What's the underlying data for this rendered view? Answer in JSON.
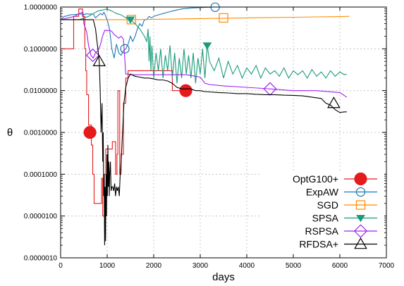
{
  "chart_data": {
    "type": "line",
    "xlabel": "days",
    "ylabel": "θ",
    "xlim": [
      0,
      7000
    ],
    "ylim": [
      1e-06,
      1
    ],
    "yscale": "log",
    "grid": "dashed",
    "legend_position": "bottom-right",
    "x_ticks": [
      "0",
      "1000",
      "2000",
      "3000",
      "4000",
      "5000",
      "6000",
      "7000"
    ],
    "y_ticks": [
      "0.0000010",
      "0.0000100",
      "0.0001000",
      "0.0010000",
      "0.0100000",
      "0.1000000",
      "1.0000000"
    ],
    "series": [
      {
        "name": "OptG100+",
        "color": "#e41a1c",
        "marker": "filled-circle",
        "marker_x": [
          630,
          2690
        ],
        "marker_y": [
          0.001,
          0.01
        ],
        "x": [
          0,
          280,
          280,
          390,
          390,
          470,
          470,
          520,
          520,
          540,
          540,
          560,
          560,
          600,
          600,
          660,
          660,
          690,
          690,
          720,
          720,
          880,
          880,
          905,
          905,
          940,
          940,
          970,
          970,
          1110,
          1110,
          1180,
          1180,
          1210,
          1210,
          1230,
          1230,
          1270,
          1270,
          1300,
          1300,
          1350,
          1350,
          1400,
          1400,
          1450,
          1450,
          2400,
          2400,
          2700
        ],
        "y": [
          0.1,
          0.1,
          0.6,
          0.6,
          0.9,
          0.9,
          0.6,
          0.6,
          0.1,
          0.1,
          0.03,
          0.03,
          0.008,
          0.008,
          0.0015,
          0.0015,
          0.0005,
          0.0005,
          0.0001,
          0.0001,
          2e-05,
          2e-05,
          8e-05,
          8e-05,
          1e-05,
          1e-05,
          0.0001,
          0.0001,
          0.0004,
          0.0004,
          0.0006,
          0.0006,
          0.0001,
          0.0001,
          0.0003,
          0.0003,
          0.01,
          0.01,
          0.0001,
          0.0001,
          0.0003,
          0.0003,
          0.005,
          0.005,
          0.02,
          0.02,
          0.03,
          0.03,
          0.01,
          0.01
        ]
      },
      {
        "name": "ExpAW",
        "color": "#1f77b4",
        "marker": "open-circle",
        "marker_x": [
          1380,
          3320
        ],
        "marker_y": [
          0.1,
          0.99
        ],
        "x": [
          0,
          80,
          100,
          200,
          300,
          400,
          450,
          500,
          550,
          600,
          700,
          750,
          850,
          900,
          930,
          970,
          1010,
          1050,
          1100,
          1150,
          1200,
          1250,
          1300,
          1350,
          1400,
          1450,
          1500,
          1550,
          1600,
          1650,
          1700,
          1750,
          1800,
          1850,
          1900,
          1950,
          2000,
          2100,
          2200,
          2300,
          2400,
          2500,
          2600,
          2700,
          2800,
          2900,
          3000,
          3100,
          3200,
          3300,
          3400,
          3500,
          3600,
          3700,
          3900,
          4200
        ],
        "y": [
          0.5,
          0.6,
          0.6,
          0.65,
          0.66,
          0.68,
          0.68,
          0.66,
          0.69,
          0.68,
          0.68,
          0.55,
          0.7,
          0.65,
          0.75,
          0.6,
          0.45,
          0.3,
          0.1,
          0.06,
          0.13,
          0.08,
          0.07,
          0.09,
          0.1,
          0.13,
          0.2,
          0.15,
          0.2,
          0.3,
          0.4,
          0.35,
          0.5,
          0.5,
          0.6,
          0.55,
          0.6,
          0.65,
          0.7,
          0.75,
          0.8,
          0.85,
          0.9,
          0.92,
          0.95,
          0.96,
          0.97,
          0.98,
          0.99,
          1.0,
          1.0,
          1.0,
          1.0,
          1.0,
          1.0,
          1.0
        ]
      },
      {
        "name": "SGD",
        "color": "#ff8c00",
        "marker": "open-square",
        "marker_x": [
          1520,
          3500
        ],
        "marker_y": [
          0.5,
          0.55
        ],
        "x": [
          0,
          500,
          1000,
          1500,
          2000,
          2500,
          3000,
          3500,
          4000,
          4500,
          5000,
          5500,
          6000,
          6200
        ],
        "y": [
          0.5,
          0.5,
          0.5,
          0.5,
          0.51,
          0.52,
          0.53,
          0.54,
          0.55,
          0.56,
          0.57,
          0.58,
          0.59,
          0.6
        ]
      },
      {
        "name": "SPSA",
        "color": "#1a9b7b",
        "marker": "filled-triangle-down",
        "marker_x": [
          1500,
          3150
        ],
        "marker_y": [
          0.5,
          0.12
        ],
        "x": [
          0,
          200,
          400,
          600,
          800,
          1000,
          1100,
          1200,
          1300,
          1400,
          1500,
          1600,
          1700,
          1800,
          1850,
          1880,
          1900,
          1920,
          1940,
          1960,
          1980,
          2000,
          2050,
          2100,
          2150,
          2200,
          2250,
          2300,
          2350,
          2400,
          2450,
          2500,
          2550,
          2600,
          2650,
          2700,
          2750,
          2800,
          2850,
          2900,
          2950,
          3000,
          3050,
          3100,
          3150,
          3200,
          3300,
          3400,
          3500,
          3600,
          3700,
          3800,
          3900,
          4000,
          4100,
          4200,
          4300,
          4400,
          4500,
          4600,
          4700,
          4800,
          4900,
          5000,
          5100,
          5200,
          5300,
          5400,
          5500,
          5600,
          5700,
          5800,
          5900,
          6000,
          6100,
          6150
        ],
        "y": [
          0.5,
          0.5,
          0.5,
          0.6,
          0.8,
          0.9,
          0.8,
          0.7,
          0.65,
          0.55,
          0.5,
          0.4,
          0.3,
          0.2,
          0.15,
          0.3,
          0.05,
          0.2,
          0.03,
          0.12,
          0.05,
          0.02,
          0.08,
          0.03,
          0.1,
          0.02,
          0.07,
          0.03,
          0.12,
          0.02,
          0.08,
          0.015,
          0.06,
          0.02,
          0.1,
          0.025,
          0.07,
          0.02,
          0.08,
          0.015,
          0.06,
          0.025,
          0.1,
          0.02,
          0.12,
          0.05,
          0.03,
          0.06,
          0.02,
          0.05,
          0.025,
          0.04,
          0.02,
          0.035,
          0.025,
          0.04,
          0.02,
          0.035,
          0.025,
          0.03,
          0.022,
          0.035,
          0.02,
          0.03,
          0.024,
          0.03,
          0.02,
          0.032,
          0.022,
          0.028,
          0.02,
          0.03,
          0.022,
          0.028,
          0.024,
          0.025
        ]
      },
      {
        "name": "RSPSA",
        "color": "#a020f0",
        "marker": "open-diamond",
        "marker_x": [
          690,
          4500
        ],
        "marker_y": [
          0.07,
          0.011
        ],
        "x": [
          0,
          300,
          400,
          480,
          500,
          560,
          600,
          650,
          700,
          750,
          800,
          850,
          900,
          950,
          1000,
          1050,
          1100,
          1150,
          1200,
          1250,
          1300,
          1350,
          1400,
          1450,
          1500,
          1550,
          1600,
          1700,
          1800,
          1900,
          2000,
          2100,
          2200,
          2300,
          2400,
          2500,
          2600,
          2700,
          2800,
          2900,
          3000,
          3100,
          3200,
          3500,
          4000,
          4500,
          5000,
          5500,
          6000,
          6150
        ],
        "y": [
          0.5,
          0.6,
          0.7,
          0.75,
          0.4,
          0.25,
          0.12,
          0.07,
          0.06,
          0.08,
          0.09,
          0.12,
          0.2,
          0.28,
          0.27,
          0.28,
          0.26,
          0.22,
          0.2,
          0.18,
          0.2,
          0.17,
          0.025,
          0.025,
          0.024,
          0.024,
          0.024,
          0.024,
          0.024,
          0.024,
          0.024,
          0.024,
          0.024,
          0.024,
          0.024,
          0.024,
          0.024,
          0.024,
          0.023,
          0.022,
          0.021,
          0.015,
          0.014,
          0.013,
          0.012,
          0.011,
          0.01,
          0.01,
          0.009,
          0.007
        ]
      },
      {
        "name": "RFDSA+",
        "color": "#000000",
        "marker": "open-triangle",
        "marker_x": [
          830,
          5870
        ],
        "marker_y": [
          0.05,
          0.005
        ],
        "x": [
          0,
          300,
          500,
          600,
          700,
          750,
          800,
          830,
          850,
          870,
          890,
          905,
          915,
          925,
          935,
          945,
          955,
          965,
          975,
          985,
          995,
          1005,
          1015,
          1025,
          1035,
          1045,
          1055,
          1070,
          1085,
          1100,
          1120,
          1140,
          1160,
          1180,
          1200,
          1220,
          1240,
          1260,
          1280,
          1300,
          1330,
          1360,
          1400,
          1450,
          1500,
          1600,
          1700,
          1800,
          1900,
          2000,
          2100,
          2200,
          2300,
          2400,
          2500,
          2600,
          2700,
          2800,
          2900,
          3000,
          3100,
          3200,
          3400,
          3600,
          3800,
          4000,
          4200,
          4400,
          4600,
          4800,
          5000,
          5200,
          5400,
          5600,
          5700,
          5800,
          5900,
          6000,
          6100,
          6150
        ],
        "y": [
          0.5,
          0.5,
          0.5,
          0.5,
          0.5,
          0.3,
          0.1,
          0.05,
          0.01,
          0.001,
          0.005,
          0.0002,
          0.001,
          3e-05,
          0.0001,
          2e-06,
          5e-05,
          2.5e-06,
          0.0001,
          1e-05,
          0.0003,
          3e-05,
          0.0005,
          5e-05,
          0.0002,
          3e-05,
          0.0001,
          0.0002,
          4e-05,
          5e-05,
          5e-05,
          4e-05,
          6e-05,
          3e-05,
          5e-05,
          4e-05,
          5e-05,
          3e-05,
          0.0001,
          0.0002,
          0.001,
          0.005,
          0.012,
          0.02,
          0.025,
          0.022,
          0.021,
          0.02,
          0.02,
          0.019,
          0.018,
          0.018,
          0.017,
          0.015,
          0.012,
          0.011,
          0.011,
          0.011,
          0.01,
          0.01,
          0.0095,
          0.0093,
          0.009,
          0.0088,
          0.0085,
          0.0085,
          0.0082,
          0.008,
          0.008,
          0.0078,
          0.0077,
          0.0075,
          0.007,
          0.0065,
          0.005,
          0.0045,
          0.0035,
          0.003,
          0.0031,
          0.0031
        ]
      }
    ]
  }
}
